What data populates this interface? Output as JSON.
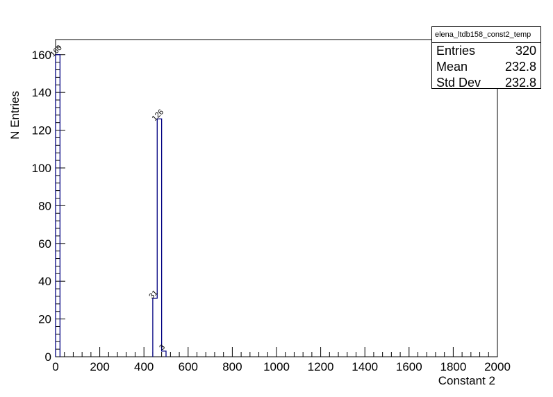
{
  "chart_data": {
    "type": "histogram",
    "xlabel": "Constant 2",
    "ylabel": "N Entries",
    "xlim": [
      0,
      2000
    ],
    "ylim": [
      0,
      168
    ],
    "bin_width": 20,
    "x_ticks": [
      0,
      200,
      400,
      600,
      800,
      1000,
      1200,
      1400,
      1600,
      1800,
      2000
    ],
    "y_ticks": [
      0,
      20,
      40,
      60,
      80,
      100,
      120,
      140,
      160
    ],
    "bins": [
      {
        "x0": 0,
        "x1": 20,
        "value": 160
      },
      {
        "x0": 440,
        "x1": 460,
        "value": 31
      },
      {
        "x0": 460,
        "x1": 480,
        "value": 126
      },
      {
        "x0": 480,
        "x1": 500,
        "value": 3
      }
    ],
    "bin_labels": [
      "160",
      "31",
      "126",
      "3"
    ],
    "line_color": "#000080",
    "grid": false,
    "legend": "none"
  },
  "stats": {
    "title": "elena_ltdb158_const2_temp",
    "rows": [
      {
        "label": "Entries",
        "value": "320"
      },
      {
        "label": "Mean",
        "value": "232.8"
      },
      {
        "label": "Std Dev",
        "value": "232.8"
      }
    ]
  }
}
